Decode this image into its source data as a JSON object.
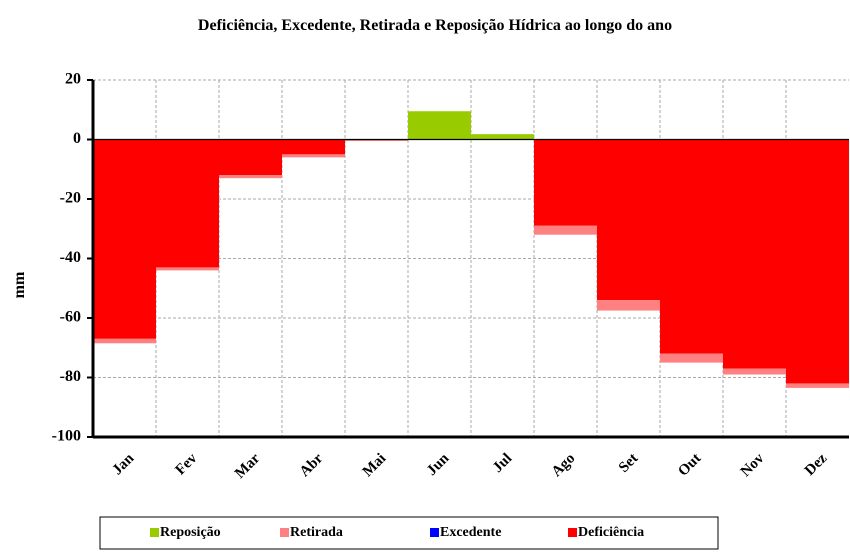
{
  "chart_data": {
    "type": "bar",
    "title": "Deficiência, Excedente, Retirada e Reposição Hídrica ao longo do ano",
    "y_label": "mm",
    "categories": [
      "Jan",
      "Fev",
      "Mar",
      "Abr",
      "Mai",
      "Jun",
      "Jul",
      "Ago",
      "Set",
      "Out",
      "Nov",
      "Dez"
    ],
    "series": [
      {
        "name": "Reposição",
        "color": "#99cc00",
        "values": [
          0,
          0,
          0,
          0,
          0,
          9.5,
          1.8,
          0,
          0,
          0,
          0,
          0
        ]
      },
      {
        "name": "Retirada",
        "color": "#ff8080",
        "values": [
          -1.5,
          -1,
          -1,
          -1,
          -0.5,
          0,
          0,
          -3,
          -3.5,
          -3,
          -2,
          -1.5
        ]
      },
      {
        "name": "Excedente",
        "color": "#0000ff",
        "values": [
          0,
          0,
          0,
          0,
          0,
          0,
          0,
          0,
          0,
          0,
          0,
          0
        ]
      },
      {
        "name": "Deficiência",
        "color": "#ff0000",
        "values": [
          -67,
          -43,
          -12,
          -5,
          0,
          0,
          0,
          -29,
          -54,
          -72,
          -77,
          -82
        ]
      }
    ],
    "ylim": [
      -100,
      20
    ],
    "yticks": [
      -100,
      -80,
      -60,
      -40,
      -20,
      0,
      20
    ],
    "grid": true
  }
}
